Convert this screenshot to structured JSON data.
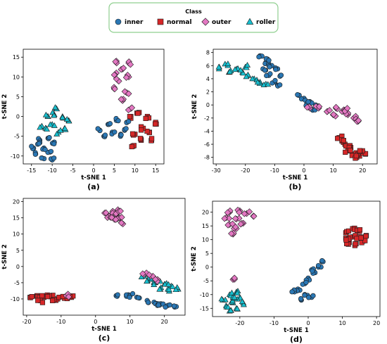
{
  "legend": {
    "title": "Class",
    "items": [
      {
        "label": "inner",
        "color": "#2a77b4",
        "marker": "circle"
      },
      {
        "label": "normal",
        "color": "#d62728",
        "marker": "square"
      },
      {
        "label": "outer",
        "color": "#e377c2",
        "marker": "diamond"
      },
      {
        "label": "roller",
        "color": "#17bfcf",
        "marker": "triangle"
      }
    ],
    "border_color": "#8fcf8f"
  },
  "chart_data": [
    {
      "type": "scatter",
      "panel_label": "(a)",
      "xlabel": "t-SNE 1",
      "ylabel": "t-SNE 2",
      "xlim": [
        -17,
        17
      ],
      "ylim": [
        -12,
        17
      ],
      "xticks": [
        -15,
        -10,
        -5,
        0,
        5,
        10,
        15
      ],
      "yticks": [
        -10,
        -5,
        0,
        5,
        10,
        15
      ],
      "clusters": [
        {
          "class": "roller",
          "pts": [
            [
              -12.5,
              -2.5
            ],
            [
              -11,
              0
            ],
            [
              -9,
              2
            ],
            [
              -7.5,
              0
            ],
            [
              -7,
              -3
            ],
            [
              -8.5,
              -4
            ],
            [
              -10,
              -2
            ],
            [
              -11.5,
              -3
            ],
            [
              -9.5,
              0.5
            ],
            [
              -6,
              -1
            ]
          ]
        },
        {
          "class": "inner",
          "pts": [
            [
              -14.5,
              -8
            ],
            [
              -13,
              -6
            ],
            [
              -11,
              -5.5
            ],
            [
              -9.5,
              -6.5
            ],
            [
              -10.5,
              -9
            ],
            [
              -12.5,
              -10.5
            ],
            [
              -14,
              -9.5
            ],
            [
              -12,
              -8
            ],
            [
              -10,
              -11
            ],
            [
              -13.5,
              -7
            ]
          ]
        },
        {
          "class": "outer",
          "pts": [
            [
              5.5,
              14
            ],
            [
              7,
              12
            ],
            [
              8.5,
              10
            ],
            [
              6,
              9
            ],
            [
              5,
              7
            ],
            [
              8,
              6
            ],
            [
              9,
              2
            ],
            [
              7,
              4
            ],
            [
              5.5,
              11
            ],
            [
              8.5,
              13.5
            ]
          ]
        },
        {
          "class": "normal",
          "pts": [
            [
              9,
              0
            ],
            [
              11,
              1
            ],
            [
              13,
              0
            ],
            [
              15,
              -1.5
            ],
            [
              13.5,
              -4
            ],
            [
              11.5,
              -6
            ],
            [
              9.5,
              -7.5
            ],
            [
              12,
              -3
            ],
            [
              10,
              -4.5
            ],
            [
              14,
              -6
            ]
          ]
        },
        {
          "class": "inner",
          "pts": [
            [
              1.5,
              -3.5
            ],
            [
              3.5,
              -2
            ],
            [
              5.5,
              -1
            ],
            [
              7.5,
              -3.5
            ],
            [
              6.5,
              -5
            ],
            [
              4.5,
              -4
            ],
            [
              2.5,
              -5
            ],
            [
              8,
              -1.5
            ]
          ]
        }
      ]
    },
    {
      "type": "scatter",
      "panel_label": "(b)",
      "xlabel": "t-SNE 1",
      "ylabel": "t-SNE 2",
      "xlim": [
        -31,
        25
      ],
      "ylim": [
        -9,
        8.5
      ],
      "xticks": [
        -30,
        -20,
        -10,
        0,
        10,
        20
      ],
      "yticks": [
        -8,
        -6,
        -4,
        -2,
        0,
        2,
        4,
        6,
        8
      ],
      "clusters": [
        {
          "class": "roller",
          "pts": [
            [
              -29,
              5.5
            ],
            [
              -26,
              6
            ],
            [
              -23,
              5.5
            ],
            [
              -21,
              5
            ],
            [
              -19,
              4.5
            ],
            [
              -17,
              4
            ],
            [
              -15,
              3.5
            ],
            [
              -13,
              3.2
            ],
            [
              -25,
              5.2
            ],
            [
              -20,
              5.8
            ]
          ]
        },
        {
          "class": "inner",
          "pts": [
            [
              -15,
              7.5
            ],
            [
              -13,
              6.5
            ],
            [
              -11,
              6
            ],
            [
              -9,
              5.5
            ],
            [
              -8,
              4.5
            ],
            [
              -10,
              3.5
            ],
            [
              -12,
              4.5
            ],
            [
              -14,
              5.5
            ],
            [
              -9,
              3
            ],
            [
              -12.5,
              7
            ]
          ]
        },
        {
          "class": "inner",
          "pts": [
            [
              -2,
              1.5
            ],
            [
              0,
              1
            ],
            [
              2,
              0.5
            ],
            [
              3,
              -0.8
            ],
            [
              1,
              0.2
            ],
            [
              4,
              0
            ]
          ]
        },
        {
          "class": "outer",
          "pts": [
            [
              2,
              -0.5
            ],
            [
              5,
              -0.5
            ],
            [
              8,
              -1
            ],
            [
              11,
              -0.5
            ],
            [
              13,
              -1
            ],
            [
              15,
              -1.5
            ],
            [
              17,
              -2
            ],
            [
              18.5,
              -2.5
            ],
            [
              10,
              -1.5
            ],
            [
              14,
              -0.8
            ]
          ]
        },
        {
          "class": "normal",
          "pts": [
            [
              12,
              -5
            ],
            [
              14,
              -6
            ],
            [
              16,
              -6.5
            ],
            [
              17,
              -7.5
            ],
            [
              19,
              -7.8
            ],
            [
              21,
              -7.5
            ],
            [
              15,
              -7
            ],
            [
              13,
              -5.5
            ],
            [
              18,
              -8
            ],
            [
              20,
              -7
            ]
          ]
        }
      ]
    },
    {
      "type": "scatter",
      "panel_label": "(c)",
      "xlabel": "t-SNE 1",
      "ylabel": "t-SNE 2",
      "xlim": [
        -21,
        26
      ],
      "ylim": [
        -15,
        21
      ],
      "xticks": [
        -20,
        -10,
        0,
        10,
        20
      ],
      "yticks": [
        -10,
        -5,
        0,
        5,
        10,
        15,
        20
      ],
      "clusters": [
        {
          "class": "normal",
          "pts": [
            [
              -19,
              -9.5
            ],
            [
              -17,
              -9
            ],
            [
              -15,
              -9.5
            ],
            [
              -13,
              -9.2
            ],
            [
              -11,
              -10
            ],
            [
              -9,
              -9.8
            ],
            [
              -7,
              -9.5
            ],
            [
              -16,
              -10.5
            ],
            [
              -12,
              -10.2
            ],
            [
              -14,
              -8.8
            ]
          ]
        },
        {
          "class": "outer",
          "pts": [
            [
              3,
              16.5
            ],
            [
              5,
              17
            ],
            [
              6,
              16
            ],
            [
              7,
              15
            ],
            [
              7.5,
              13.5
            ],
            [
              4,
              15.5
            ],
            [
              5.5,
              14.5
            ],
            [
              6.5,
              17.5
            ],
            [
              -8.5,
              -9
            ]
          ]
        },
        {
          "class": "inner",
          "pts": [
            [
              6,
              -9
            ],
            [
              9,
              -9.2
            ],
            [
              12,
              -9.5
            ],
            [
              15,
              -10.5
            ],
            [
              17,
              -11
            ],
            [
              19,
              -11.5
            ],
            [
              21,
              -12
            ],
            [
              23,
              -12.5
            ],
            [
              10,
              -9
            ],
            [
              18,
              -12
            ]
          ]
        },
        {
          "class": "roller",
          "pts": [
            [
              14,
              -3
            ],
            [
              16,
              -4
            ],
            [
              18,
              -4.5
            ],
            [
              20,
              -5.5
            ],
            [
              22,
              -6
            ],
            [
              24,
              -7
            ],
            [
              17,
              -5
            ],
            [
              21,
              -7
            ],
            [
              19,
              -6.5
            ],
            [
              15,
              -4.5
            ]
          ]
        },
        {
          "class": "outer",
          "pts": [
            [
              14,
              -2.5
            ],
            [
              16,
              -3
            ],
            [
              18,
              -4
            ]
          ]
        }
      ]
    },
    {
      "type": "scatter",
      "panel_label": "(d)",
      "xlabel": "t-SNE 1",
      "ylabel": "t-SNE 2",
      "xlim": [
        -28,
        21
      ],
      "ylim": [
        -18,
        24
      ],
      "xticks": [
        -20,
        -10,
        0,
        10,
        20
      ],
      "yticks": [
        -15,
        -10,
        -5,
        0,
        5,
        10,
        15,
        20
      ],
      "clusters": [
        {
          "class": "outer",
          "pts": [
            [
              -23,
              20
            ],
            [
              -20,
              20.5
            ],
            [
              -18,
              19.5
            ],
            [
              -16,
              18.5
            ],
            [
              -21,
              17.5
            ],
            [
              -23,
              15.5
            ],
            [
              -21,
              14
            ],
            [
              -22,
              12
            ],
            [
              -19,
              16
            ],
            [
              -24,
              18
            ],
            [
              -22,
              -4.5
            ]
          ]
        },
        {
          "class": "normal",
          "pts": [
            [
              11,
              12.5
            ],
            [
              13,
              14
            ],
            [
              15,
              13
            ],
            [
              17,
              11.5
            ],
            [
              16,
              9.5
            ],
            [
              14,
              8.5
            ],
            [
              12,
              9
            ],
            [
              13,
              11
            ],
            [
              15,
              11
            ],
            [
              11,
              10.5
            ]
          ]
        },
        {
          "class": "inner",
          "pts": [
            [
              1,
              -1
            ],
            [
              3,
              0
            ],
            [
              4,
              2
            ],
            [
              2,
              -2
            ],
            [
              0,
              -4
            ],
            [
              -1,
              -6
            ],
            [
              -3,
              -8
            ],
            [
              -1,
              -10
            ],
            [
              1,
              -11
            ],
            [
              -2,
              -12
            ],
            [
              -4,
              -9
            ]
          ]
        },
        {
          "class": "roller",
          "pts": [
            [
              -25,
              -12
            ],
            [
              -23,
              -10
            ],
            [
              -21,
              -9
            ],
            [
              -20,
              -11
            ],
            [
              -22,
              -13
            ],
            [
              -24,
              -14
            ],
            [
              -21,
              -15
            ],
            [
              -23,
              -16
            ],
            [
              -19,
              -13
            ],
            [
              -22,
              -11
            ]
          ]
        }
      ]
    }
  ]
}
